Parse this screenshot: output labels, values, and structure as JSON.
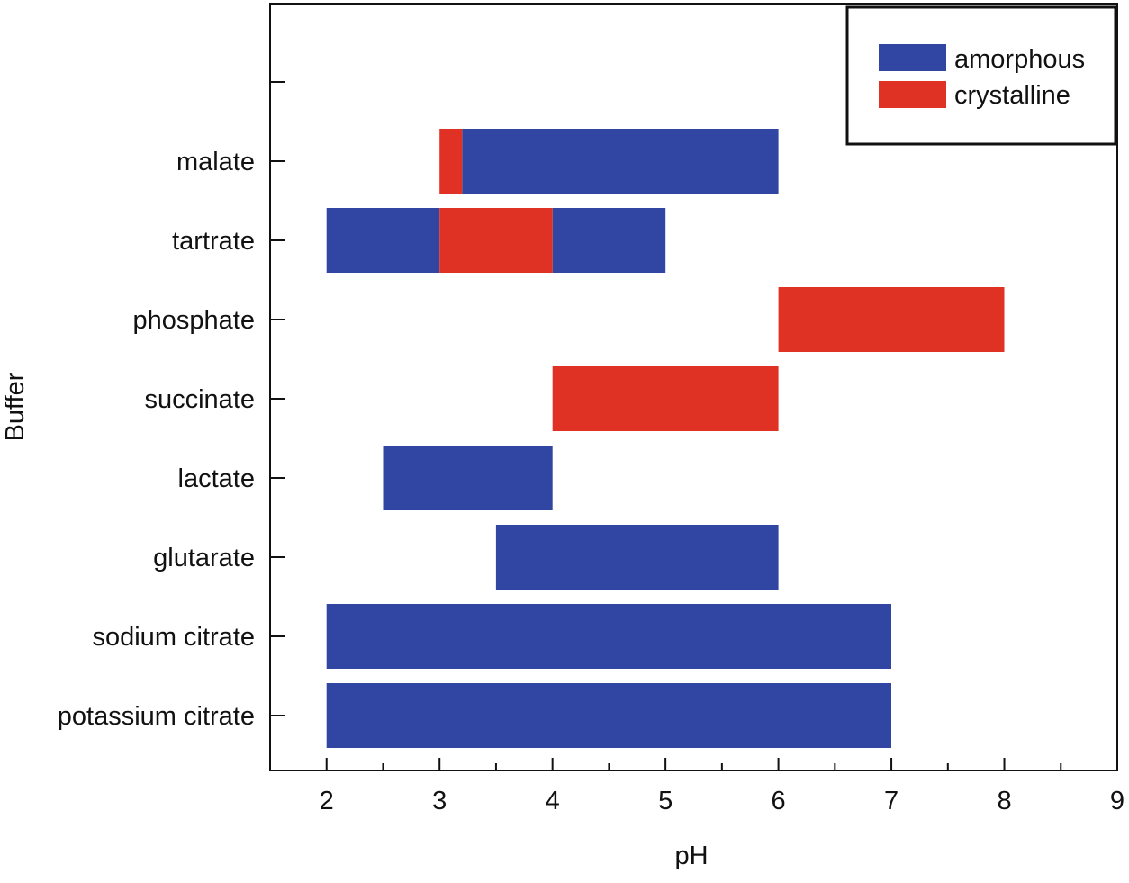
{
  "chart_data": {
    "type": "bar",
    "orientation": "horizontal-range",
    "xlabel": "pH",
    "ylabel": "Buffer",
    "xlim": [
      1.5,
      9
    ],
    "xticks": [
      2,
      3,
      4,
      5,
      6,
      7,
      8,
      9
    ],
    "xtick_labels": [
      "2",
      "3",
      "4",
      "5",
      "6",
      "7",
      "8",
      "9"
    ],
    "minor_xtick_step": 0.5,
    "legend_position": "top-right",
    "grid": false,
    "colors": {
      "amorphous": "#3145a3",
      "crystalline": "#e03224"
    },
    "legend": [
      {
        "key": "amorphous",
        "label": "amorphous"
      },
      {
        "key": "crystalline",
        "label": "crystalline"
      }
    ],
    "categories": [
      "malate",
      "tartrate",
      "phosphate",
      "succinate",
      "lactate",
      "glutarate",
      "sodium citrate",
      "potassium citrate"
    ],
    "series": [
      {
        "name": "amorphous",
        "ranges": [
          {
            "category": "malate",
            "start": 3.2,
            "end": 6
          },
          {
            "category": "tartrate",
            "start": 2,
            "end": 3
          },
          {
            "category": "tartrate",
            "start": 4,
            "end": 5
          },
          {
            "category": "lactate",
            "start": 2.5,
            "end": 4
          },
          {
            "category": "glutarate",
            "start": 3.5,
            "end": 6
          },
          {
            "category": "sodium citrate",
            "start": 2,
            "end": 7
          },
          {
            "category": "potassium citrate",
            "start": 2,
            "end": 7
          }
        ]
      },
      {
        "name": "crystalline",
        "ranges": [
          {
            "category": "malate",
            "start": 3,
            "end": 3.2
          },
          {
            "category": "tartrate",
            "start": 3,
            "end": 4
          },
          {
            "category": "phosphate",
            "start": 6,
            "end": 8
          },
          {
            "category": "succinate",
            "start": 4,
            "end": 6
          }
        ]
      }
    ]
  }
}
